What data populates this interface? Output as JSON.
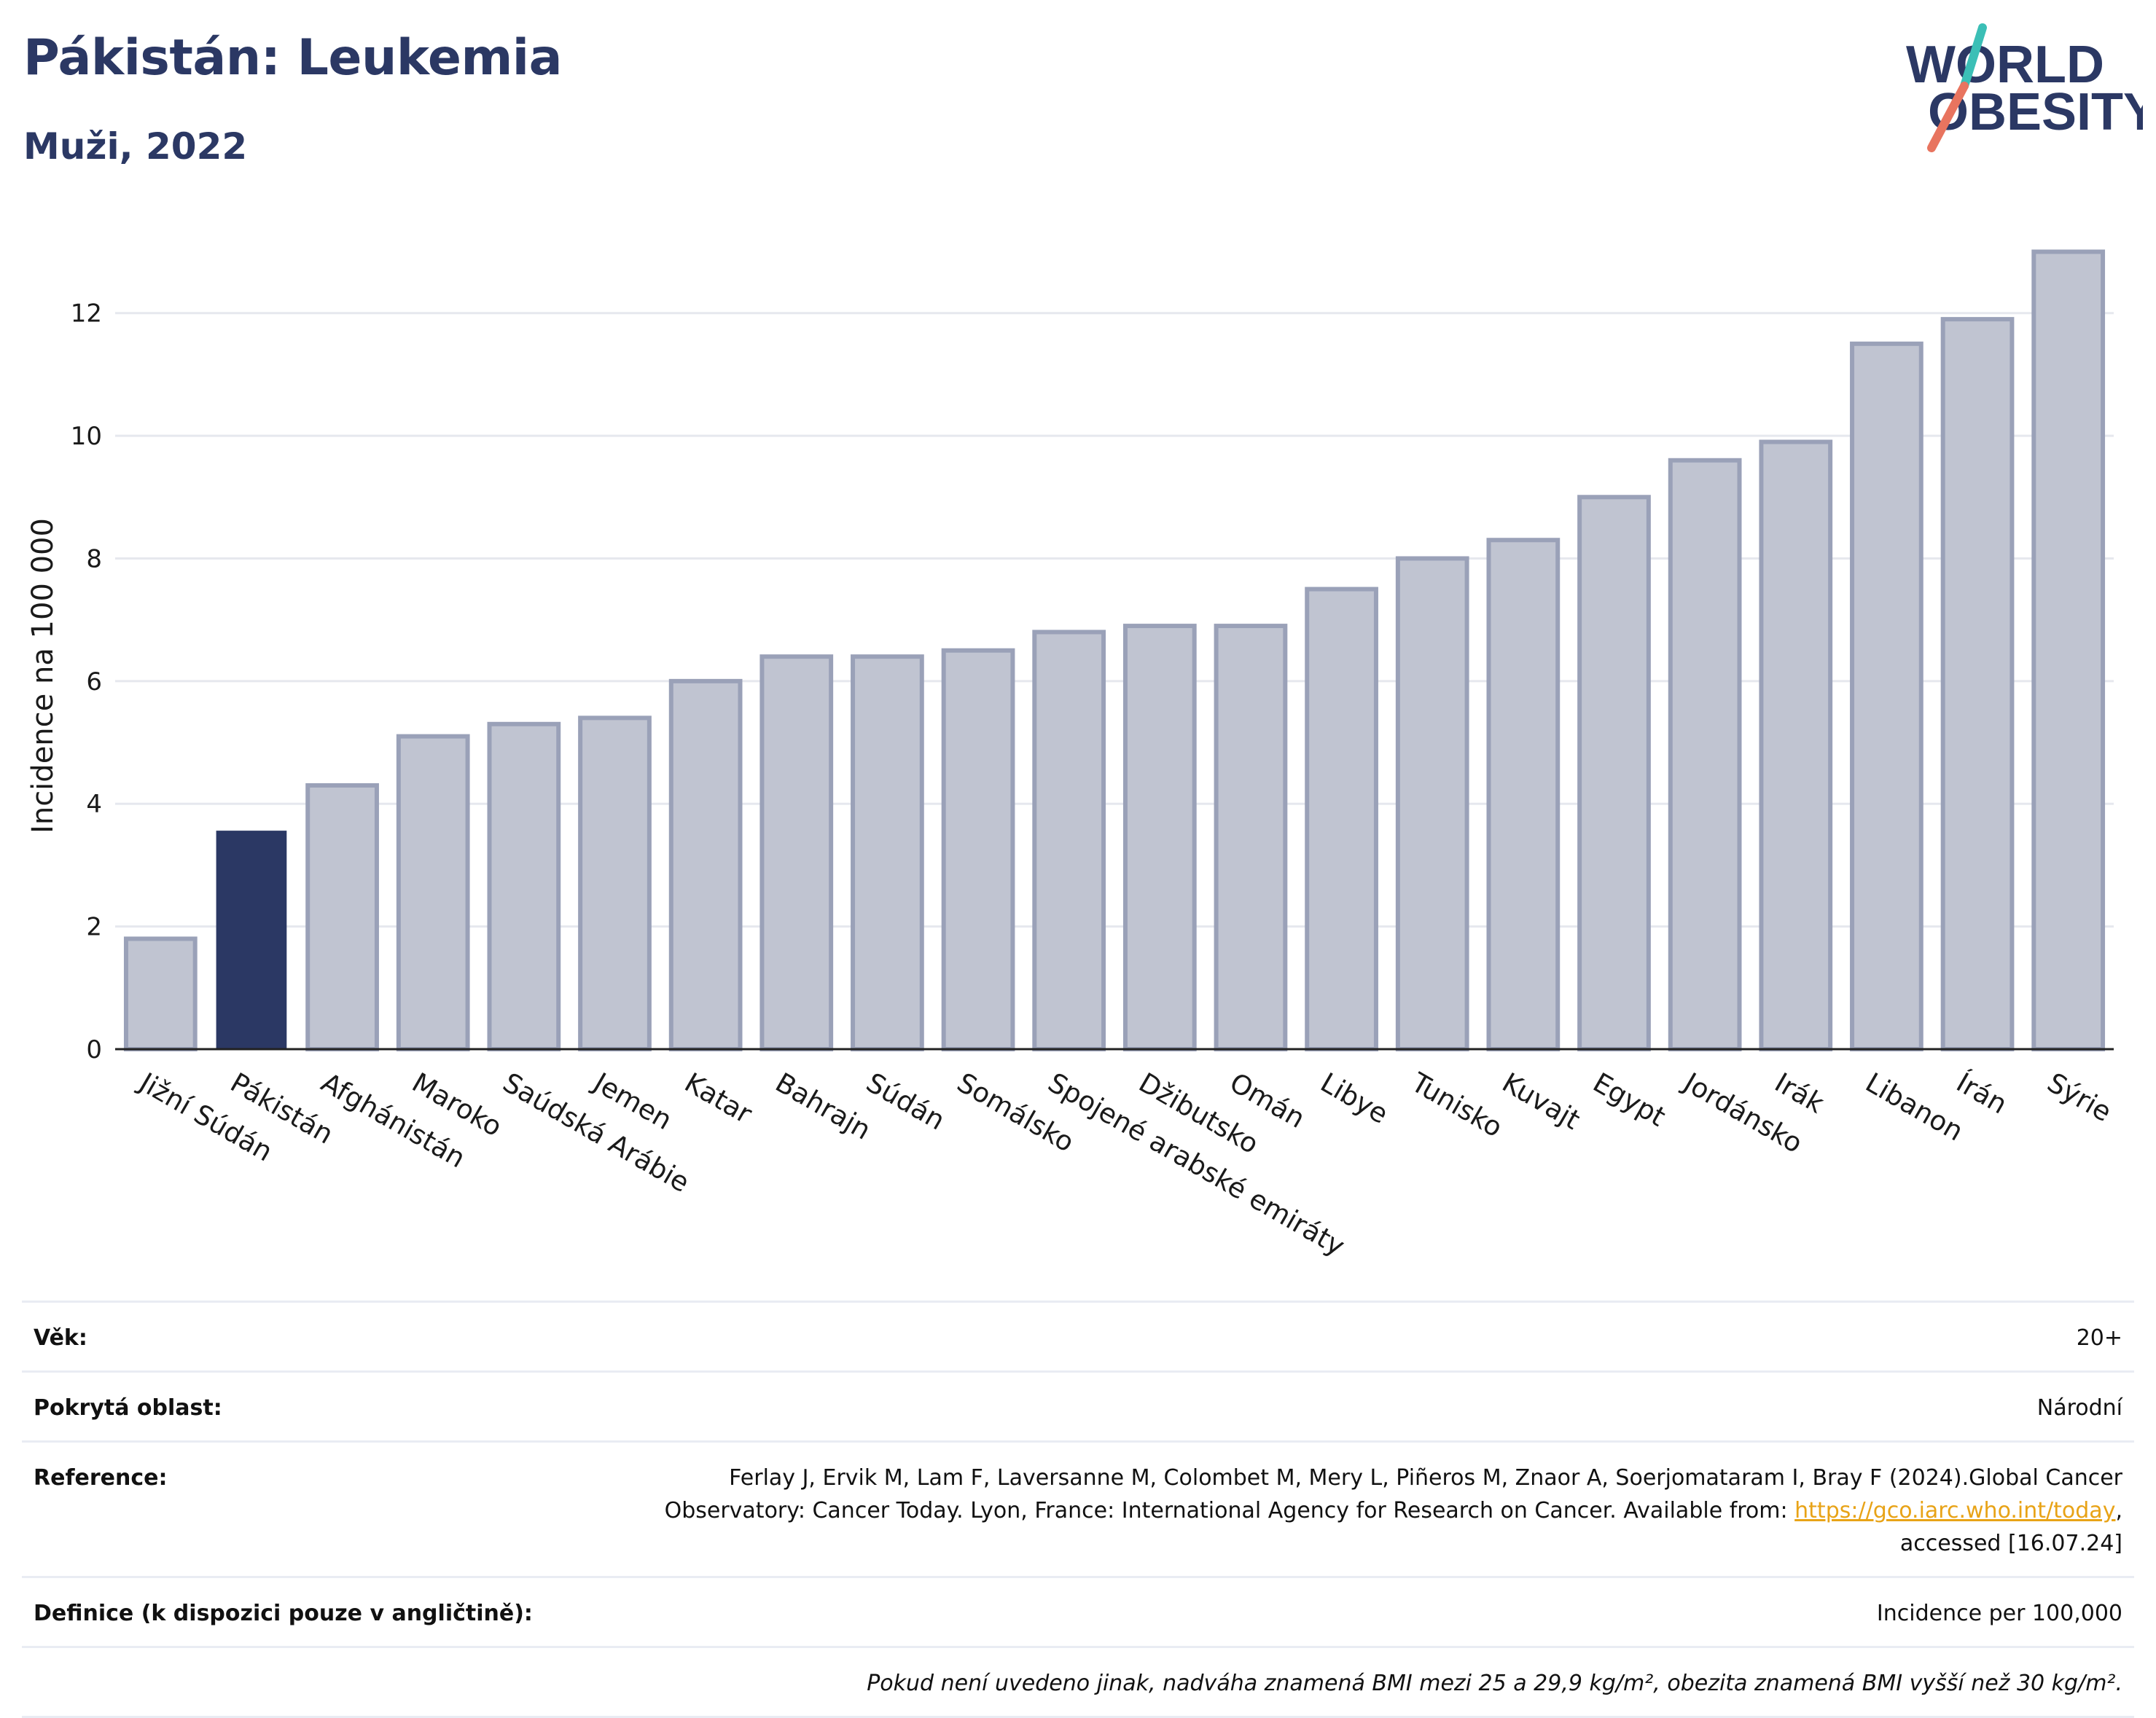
{
  "header": {
    "title": "Pákistán: Leukemia",
    "subtitle": "Muži, 2022",
    "logo_line1": "WORLD",
    "logo_line2": "OBESITY"
  },
  "colors": {
    "highlight": "#2b3864",
    "bar_fill": "#c0c4d1",
    "bar_stroke": "#9aa1b8",
    "title": "#2b3864",
    "link": "#e8a317",
    "logo_teal": "#3bbfb6",
    "logo_coral": "#e8745f"
  },
  "chart_data": {
    "type": "bar",
    "ylabel": "Incidence na 100 000",
    "xlabel": "",
    "ylim": [
      0,
      13.6
    ],
    "yticks": [
      0,
      2,
      4,
      6,
      8,
      10,
      12
    ],
    "grid": true,
    "highlight_category": "Pákistán",
    "categories": [
      "Jižní Súdán",
      "Pákistán",
      "Afghánistán",
      "Maroko",
      "Saúdská Arábie",
      "Jemen",
      "Katar",
      "Bahrajn",
      "Súdán",
      "Somálsko",
      "Spojené arabské emiráty",
      "Džibutsko",
      "Omán",
      "Libye",
      "Tunisko",
      "Kuvajt",
      "Egypt",
      "Jordánsko",
      "Irák",
      "Libanon",
      "Írán",
      "Sýrie"
    ],
    "values": [
      1.8,
      3.55,
      4.3,
      5.1,
      5.3,
      5.4,
      6.0,
      6.4,
      6.4,
      6.5,
      6.8,
      6.9,
      6.9,
      7.5,
      8.0,
      8.3,
      9.0,
      9.6,
      9.9,
      11.5,
      11.9,
      13.0
    ]
  },
  "info": {
    "age": {
      "label": "Věk:",
      "value": "20+"
    },
    "coverage": {
      "label": "Pokrytá oblast:",
      "value": "Národní"
    },
    "reference": {
      "label": "Reference:",
      "text_before": "Ferlay J, Ervik M, Lam F, Laversanne M, Colombet M, Mery L, Piñeros M, Znaor A, Soerjomataram I, Bray F (2024).Global Cancer Observatory: Cancer Today. Lyon, France: International Agency for Research on Cancer. Available from: ",
      "link": "https://gco.iarc.who.int/today",
      "text_after": ", accessed [16.07.24]"
    },
    "definition": {
      "label": "Definice (k dispozici pouze v angličtině):",
      "value": "Incidence per 100,000"
    },
    "note": "Pokud není uvedeno jinak, nadváha znamená BMI mezi 25 a 29,9 kg/m², obezita znamená BMI vyšší než 30 kg/m²."
  }
}
